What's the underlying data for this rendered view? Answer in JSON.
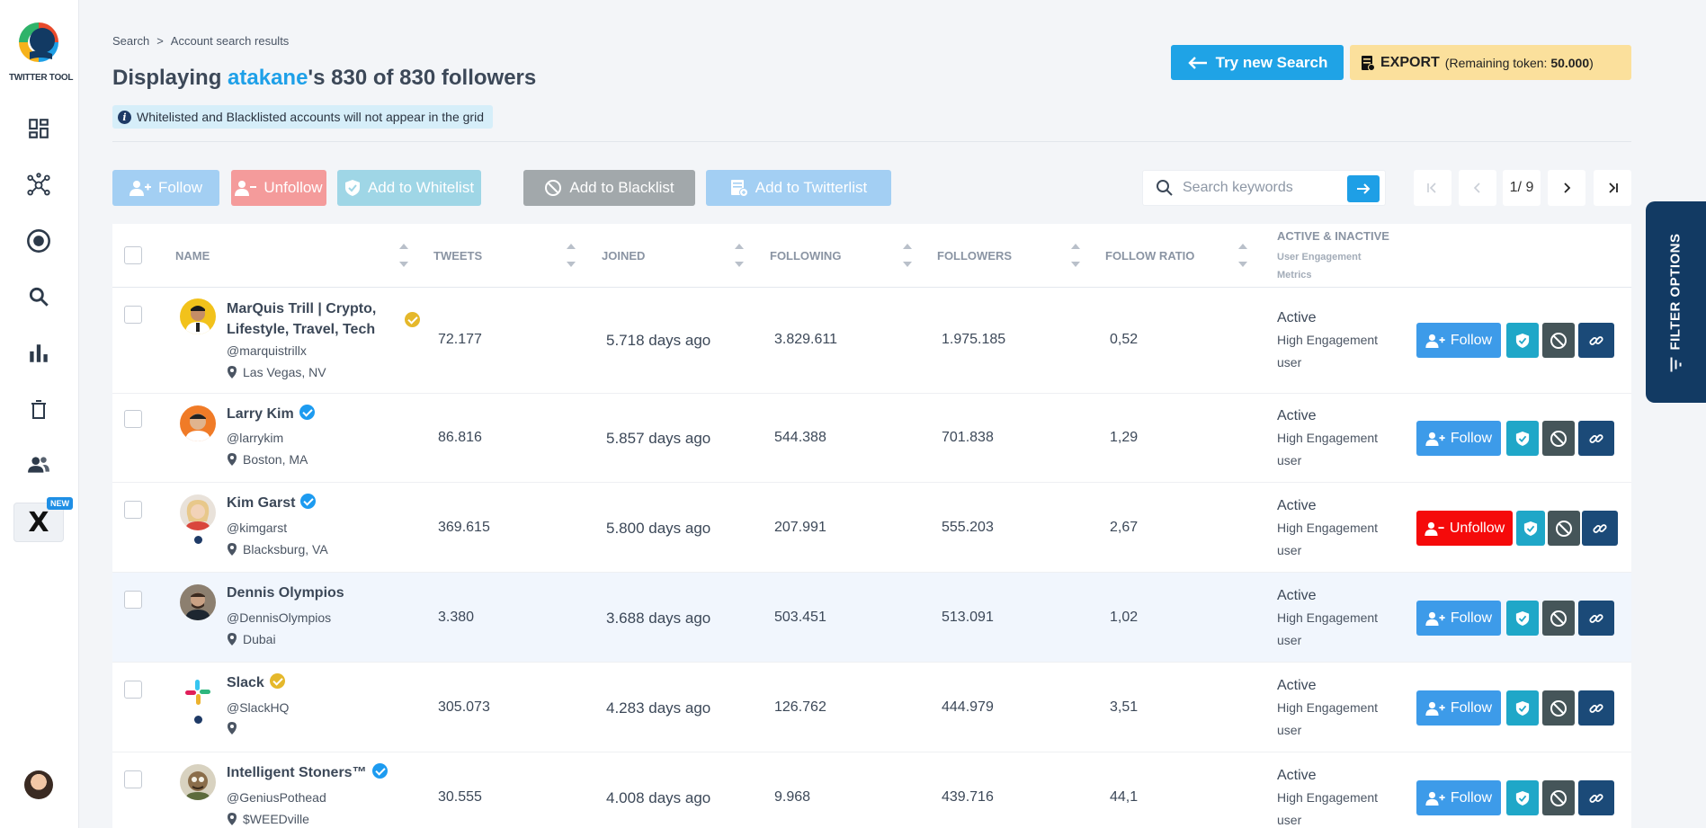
{
  "app": {
    "logo_text": "TWITTER TOOL",
    "new_badge": "NEW",
    "x_label": "X"
  },
  "sidebar": {
    "items": [
      {
        "icon": "dashboard-icon"
      },
      {
        "icon": "network-icon"
      },
      {
        "icon": "target-icon"
      },
      {
        "icon": "search-icon"
      },
      {
        "icon": "bar-chart-icon"
      },
      {
        "icon": "trash-icon"
      },
      {
        "icon": "users-icon"
      }
    ]
  },
  "breadcrumb": {
    "root": "Search",
    "separator": ">",
    "current": "Account search results"
  },
  "title": {
    "prefix": "Displaying ",
    "account": "atakane",
    "suffix": "'s 830 of 830 followers"
  },
  "notice": "Whitelisted and Blacklisted accounts will not appear in the grid",
  "header_actions": {
    "try_new_search": "Try new Search",
    "export_label": "EXPORT",
    "export_token_prefix": "(Remaining token: ",
    "export_token_value": "50.000",
    "export_token_suffix": ")"
  },
  "toolbar": {
    "follow": "Follow",
    "unfollow": "Unfollow",
    "add_whitelist": "Add to Whitelist",
    "add_blacklist": "Add to Blacklist",
    "add_twitterlist": "Add to Twitterlist",
    "search_placeholder": "Search keywords",
    "page_indicator": "1/ 9"
  },
  "columns": {
    "name": "NAME",
    "tweets": "TWEETS",
    "joined": "JOINED",
    "following": "FOLLOWING",
    "followers": "FOLLOWERS",
    "follow_ratio": "FOLLOW RATIO",
    "active": "ACTIVE & INACTIVE",
    "active_sub_1": "User Engagement",
    "active_sub_2": "Metrics"
  },
  "rows": [
    {
      "name_line1": "MarQuis Trill | Crypto,",
      "name_line2": "Lifestyle, Travel, Tech",
      "verified": "gold",
      "handle": "@marquistrillx",
      "location": "Las Vegas, NV",
      "tweets": "72.177",
      "joined": "5.718 days ago",
      "following": "3.829.611",
      "followers": "1.975.185",
      "ratio": "0,52",
      "status": "Active",
      "metric_1": "High Engagement",
      "metric_2": "user",
      "action": "Follow"
    },
    {
      "name_line1": "Larry Kim",
      "verified": "blue",
      "handle": "@larrykim",
      "location": "Boston, MA",
      "tweets": "86.816",
      "joined": "5.857 days ago",
      "following": "544.388",
      "followers": "701.838",
      "ratio": "1,29",
      "status": "Active",
      "metric_1": "High Engagement",
      "metric_2": "user",
      "action": "Follow"
    },
    {
      "name_line1": "Kim Garst",
      "verified": "blue",
      "handle": "@kimgarst",
      "location": "Blacksburg, VA",
      "tweets": "369.615",
      "joined": "5.800 days ago",
      "following": "207.991",
      "followers": "555.203",
      "ratio": "2,67",
      "status": "Active",
      "metric_1": "High Engagement",
      "metric_2": "user",
      "action": "Unfollow"
    },
    {
      "name_line1": "Dennis Olympios",
      "verified": "none",
      "handle": "@DennisOlympios",
      "location": "Dubai",
      "tweets": "3.380",
      "joined": "3.688 days ago",
      "following": "503.451",
      "followers": "513.091",
      "ratio": "1,02",
      "status": "Active",
      "metric_1": "High Engagement",
      "metric_2": "user",
      "action": "Follow"
    },
    {
      "name_line1": "Slack",
      "verified": "gold",
      "handle": "@SlackHQ",
      "location": "",
      "tweets": "305.073",
      "joined": "4.283 days ago",
      "following": "126.762",
      "followers": "444.979",
      "ratio": "3,51",
      "status": "Active",
      "metric_1": "High Engagement",
      "metric_2": "user",
      "action": "Follow"
    },
    {
      "name_line1": "Intelligent Stoners™",
      "verified": "blue",
      "handle": "@GeniusPothead",
      "location": "$WEEDville",
      "tweets": "30.555",
      "joined": "4.008 days ago",
      "following": "9.968",
      "followers": "439.716",
      "ratio": "44,1",
      "status": "Active",
      "metric_1": "High Engagement",
      "metric_2": "user",
      "action": "Follow"
    }
  ],
  "filter_tab": "FILTER OPTIONS",
  "colors": {
    "accent": "#1ea0e8",
    "follow": "#3d9be9",
    "unfollow": "#f50a0a",
    "whitelist": "#1fa7c8",
    "blacklist": "#455559",
    "link": "#1b4a78",
    "export": "#fbe09c",
    "filter_tab": "#123a63"
  }
}
